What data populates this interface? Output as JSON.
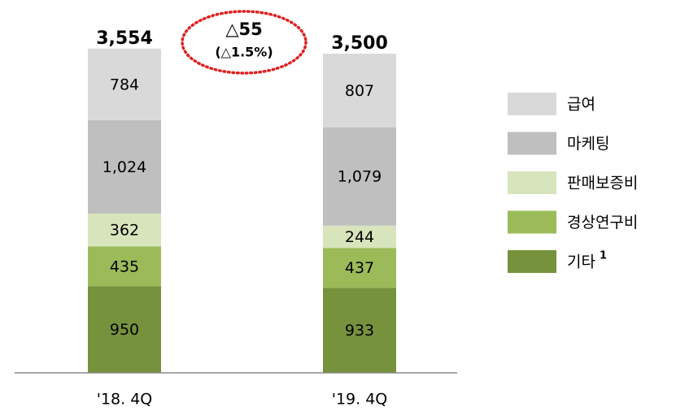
{
  "chart_data": {
    "type": "stacked_bar",
    "categories": [
      "'18. 4Q",
      "'19. 4Q"
    ],
    "series": [
      {
        "name": "기타",
        "note": "1",
        "color": "#76923c",
        "values": [
          950,
          933
        ]
      },
      {
        "name": "경상연구비",
        "color": "#9bbb59",
        "values": [
          435,
          437
        ]
      },
      {
        "name": "판매보증비",
        "color": "#d8e4bc",
        "values": [
          362,
          244
        ]
      },
      {
        "name": "마케팅",
        "color": "#bfbfbf",
        "values": [
          1024,
          1079
        ],
        "value_labels": [
          "1,024",
          "1,079"
        ]
      },
      {
        "name": "급여",
        "color": "#d9d9d9",
        "values": [
          784,
          807
        ]
      }
    ],
    "totals": [
      3554,
      3500
    ],
    "total_labels": [
      "3,554",
      "3,500"
    ],
    "annotation": {
      "main": "△55",
      "sub": "(△1.5%)",
      "color": "#e02020"
    }
  }
}
